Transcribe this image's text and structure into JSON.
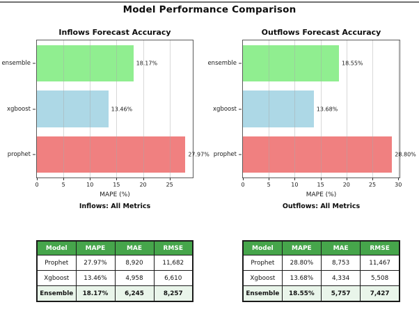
{
  "figure_title": "Model Performance Comparison",
  "theme": {
    "table_header_bg": "#46a54b",
    "table_header_text": "#ffffff",
    "table_footer_bg": "#e9f5ea",
    "grid_color": "#d9d9d9",
    "frame_color": "#5a5a5a",
    "top_rule_color": "#707070"
  },
  "chart_data": [
    {
      "type": "bar",
      "orientation": "horizontal",
      "title": "Inflows Forecast Accuracy",
      "categories": [
        "ensemble",
        "xgboost",
        "prophet"
      ],
      "values": [
        18.17,
        13.46,
        27.97
      ],
      "value_labels": [
        "18.17%",
        "13.46%",
        "27.97%"
      ],
      "bar_colors": [
        "#90ee90",
        "#add8e6",
        "#f08080"
      ],
      "xlabel": "MAPE (%)",
      "xticks": [
        0,
        5,
        10,
        15,
        20,
        25
      ],
      "xlim": [
        0,
        29.37
      ],
      "grid": "vertical",
      "legend": "none",
      "subtitle": "Inflows: All Metrics"
    },
    {
      "type": "bar",
      "orientation": "horizontal",
      "title": "Outflows Forecast Accuracy",
      "categories": [
        "ensemble",
        "xgboost",
        "prophet"
      ],
      "values": [
        18.55,
        13.68,
        28.8
      ],
      "value_labels": [
        "18.55%",
        "13.68%",
        "28.80%"
      ],
      "bar_colors": [
        "#90ee90",
        "#add8e6",
        "#f08080"
      ],
      "xlabel": "MAPE (%)",
      "xticks": [
        0,
        5,
        10,
        15,
        20,
        25,
        30
      ],
      "xlim": [
        0,
        30.24
      ],
      "grid": "vertical",
      "legend": "none",
      "subtitle": "Outflows: All Metrics"
    },
    {
      "type": "table",
      "columns": [
        "Model",
        "MAPE",
        "MAE",
        "RMSE"
      ],
      "rows": [
        [
          "Prophet",
          "27.97%",
          "8,920",
          "11,682"
        ],
        [
          "Xgboost",
          "13.46%",
          "4,958",
          "6,610"
        ]
      ],
      "footer": [
        "Ensemble",
        "18.17%",
        "6,245",
        "8,257"
      ]
    },
    {
      "type": "table",
      "columns": [
        "Model",
        "MAPE",
        "MAE",
        "RMSE"
      ],
      "rows": [
        [
          "Prophet",
          "28.80%",
          "8,753",
          "11,467"
        ],
        [
          "Xgboost",
          "13.68%",
          "4,334",
          "5,508"
        ]
      ],
      "footer": [
        "Ensemble",
        "18.55%",
        "5,757",
        "7,427"
      ]
    }
  ]
}
